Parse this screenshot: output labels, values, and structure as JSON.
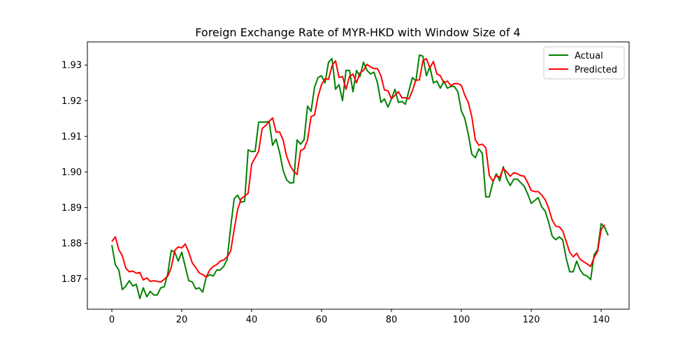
{
  "chart_data": {
    "type": "line",
    "title": "Foreign Exchange Rate of MYR-HKD with Window Size of 4",
    "xlabel": "",
    "ylabel": "",
    "xlim": [
      -7,
      148
    ],
    "ylim": [
      1.8615,
      1.9365
    ],
    "x_ticks": [
      0,
      20,
      40,
      60,
      80,
      100,
      120,
      140
    ],
    "y_ticks": [
      1.87,
      1.88,
      1.89,
      1.9,
      1.91,
      1.92,
      1.93
    ],
    "x_tick_labels": [
      "0",
      "20",
      "40",
      "60",
      "80",
      "100",
      "120",
      "140"
    ],
    "y_tick_labels": [
      "1.87",
      "1.88",
      "1.89",
      "1.90",
      "1.91",
      "1.92",
      "1.93"
    ],
    "grid": false,
    "legend_position": "top-right",
    "series": [
      {
        "name": "Actual",
        "color": "#008000",
        "values": [
          1.8795,
          1.874,
          1.8725,
          1.867,
          1.868,
          1.8695,
          1.868,
          1.8685,
          1.8645,
          1.8675,
          1.865,
          1.8665,
          1.8655,
          1.8655,
          1.8675,
          1.8678,
          1.8715,
          1.878,
          1.8775,
          1.875,
          1.8775,
          1.8735,
          1.8695,
          1.8692,
          1.8672,
          1.8675,
          1.8663,
          1.8705,
          1.8712,
          1.8708,
          1.8725,
          1.8725,
          1.8735,
          1.8755,
          1.8845,
          1.8925,
          1.8935,
          1.8915,
          1.8918,
          1.9062,
          1.9057,
          1.9058,
          1.914,
          1.914,
          1.914,
          1.9142,
          1.9075,
          1.9092,
          1.9055,
          1.9005,
          1.8978,
          1.8969,
          1.897,
          1.909,
          1.9078,
          1.909,
          1.9185,
          1.917,
          1.9238,
          1.9265,
          1.927,
          1.925,
          1.9308,
          1.9318,
          1.9232,
          1.9245,
          1.92,
          1.9285,
          1.9285,
          1.9225,
          1.9285,
          1.9268,
          1.9308,
          1.9285,
          1.9275,
          1.928,
          1.925,
          1.9195,
          1.9205,
          1.9182,
          1.9205,
          1.9232,
          1.9195,
          1.9198,
          1.919,
          1.9228,
          1.9265,
          1.9255,
          1.9328,
          1.9325,
          1.927,
          1.9295,
          1.925,
          1.9255,
          1.9235,
          1.9255,
          1.9235,
          1.924,
          1.924,
          1.9225,
          1.9172,
          1.915,
          1.9105,
          1.905,
          1.904,
          1.9065,
          1.9052,
          1.893,
          1.893,
          1.897,
          1.8995,
          1.8975,
          1.9015,
          1.898,
          1.8962,
          1.898,
          1.898,
          1.897,
          1.896,
          1.8938,
          1.8912,
          1.892,
          1.8928,
          1.8902,
          1.889,
          1.8858,
          1.882,
          1.881,
          1.8818,
          1.881,
          1.8758,
          1.872,
          1.872,
          1.875,
          1.8725,
          1.8712,
          1.8708,
          1.8698,
          1.8768,
          1.8782,
          1.8855,
          1.8845,
          1.8822
        ]
      },
      {
        "name": "Predicted",
        "color": "#ff0000",
        "values": [
          1.8805,
          1.8818,
          1.8782,
          1.8765,
          1.873,
          1.872,
          1.8722,
          1.8716,
          1.8718,
          1.8697,
          1.8703,
          1.8693,
          1.8695,
          1.8693,
          1.8691,
          1.8699,
          1.8708,
          1.8732,
          1.878,
          1.879,
          1.8787,
          1.8798,
          1.8775,
          1.8745,
          1.8732,
          1.8717,
          1.8712,
          1.8705,
          1.8725,
          1.8735,
          1.874,
          1.875,
          1.8753,
          1.8762,
          1.8778,
          1.8838,
          1.8895,
          1.8925,
          1.8932,
          1.894,
          1.9022,
          1.904,
          1.9058,
          1.9122,
          1.913,
          1.9142,
          1.9152,
          1.9112,
          1.9112,
          1.909,
          1.9045,
          1.9018,
          1.9002,
          1.8993,
          1.906,
          1.9065,
          1.909,
          1.9155,
          1.916,
          1.9212,
          1.9245,
          1.9262,
          1.926,
          1.9298,
          1.9312,
          1.9265,
          1.9268,
          1.9232,
          1.9268,
          1.9275,
          1.925,
          1.9278,
          1.9285,
          1.9302,
          1.9295,
          1.929,
          1.929,
          1.927,
          1.923,
          1.9228,
          1.9205,
          1.9215,
          1.9225,
          1.9208,
          1.9208,
          1.9205,
          1.9228,
          1.9258,
          1.9258,
          1.9312,
          1.9318,
          1.9292,
          1.931,
          1.9275,
          1.927,
          1.925,
          1.9255,
          1.9242,
          1.9248,
          1.9248,
          1.9243,
          1.9215,
          1.9195,
          1.9155,
          1.909,
          1.9075,
          1.9078,
          1.9068,
          1.899,
          1.8975,
          1.899,
          1.8985,
          1.901,
          1.9,
          1.8988,
          1.8998,
          1.8995,
          1.899,
          1.8988,
          1.897,
          1.8948,
          1.8945,
          1.8945,
          1.8935,
          1.8922,
          1.8898,
          1.8865,
          1.8848,
          1.8846,
          1.8835,
          1.8805,
          1.8775,
          1.8762,
          1.8772,
          1.8755,
          1.8748,
          1.8742,
          1.8735,
          1.876,
          1.8778,
          1.8838,
          1.8852
        ]
      }
    ]
  }
}
